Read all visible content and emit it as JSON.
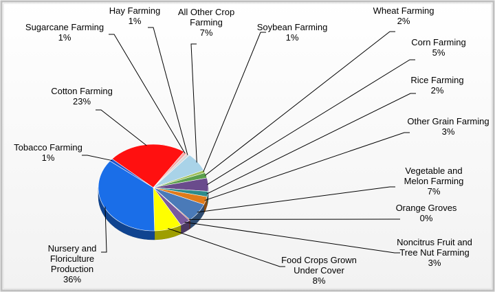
{
  "chart_data": {
    "type": "pie",
    "title": "",
    "slices": [
      {
        "label": "Wheat Farming",
        "value": 2,
        "display": "2%",
        "color": "#5a9e4b"
      },
      {
        "label": "Corn Farming",
        "value": 5,
        "display": "5%",
        "color": "#6a4b8c"
      },
      {
        "label": "Rice Farming",
        "value": 2,
        "display": "2%",
        "color": "#2e8b8b"
      },
      {
        "label": "Other Grain Farming",
        "value": 3,
        "display": "3%",
        "color": "#e07b1a"
      },
      {
        "label": "Vegetable and Melon Farming",
        "value": 7,
        "display": "7%",
        "color": "#4a7ab8"
      },
      {
        "label": "Orange Groves",
        "value": 0,
        "display": "0%",
        "color": "#b7411a"
      },
      {
        "label": "Noncitrus Fruit and Tree Nut Farming",
        "value": 3,
        "display": "3%",
        "color": "#7a5a9e"
      },
      {
        "label": "Food Crops Grown Under Cover",
        "value": 8,
        "display": "8%",
        "color": "#ffff00"
      },
      {
        "label": "Nursery and Floriculture Production",
        "value": 36,
        "display": "36%",
        "color": "#1a6ee8"
      },
      {
        "label": "Tobacco Farming",
        "value": 1,
        "display": "1%",
        "color": "#2255cc"
      },
      {
        "label": "Cotton Farming",
        "value": 23,
        "display": "23%",
        "color": "#ff1010"
      },
      {
        "label": "Sugarcane Farming",
        "value": 1,
        "display": "1%",
        "color": "#f4a8a8"
      },
      {
        "label": "Hay Farming",
        "value": 1,
        "display": "1%",
        "color": "#d9d9d9"
      },
      {
        "label": "All Other Crop Farming",
        "value": 7,
        "display": "7%",
        "color": "#a9d3e8"
      },
      {
        "label": "Soybean Farming",
        "value": 1,
        "display": "1%",
        "color": "#9fbf5a"
      }
    ],
    "callouts": [
      {
        "lines": [
          "Wheat Farming",
          "2%"
        ]
      },
      {
        "lines": [
          "Corn Farming",
          "5%"
        ]
      },
      {
        "lines": [
          "Rice Farming",
          "2%"
        ]
      },
      {
        "lines": [
          "Other Grain Farming",
          "3%"
        ]
      },
      {
        "lines": [
          "Vegetable and",
          "Melon Farming",
          "7%"
        ]
      },
      {
        "lines": [
          "Orange Groves",
          "0%"
        ]
      },
      {
        "lines": [
          "Noncitrus Fruit and",
          "Tree Nut Farming",
          "3%"
        ]
      },
      {
        "lines": [
          "Food Crops Grown",
          "Under Cover",
          "8%"
        ]
      },
      {
        "lines": [
          "Nursery and",
          "Floriculture",
          "Production",
          "36%"
        ]
      },
      {
        "lines": [
          "Tobacco Farming",
          "1%"
        ]
      },
      {
        "lines": [
          "Cotton Farming",
          "23%"
        ]
      },
      {
        "lines": [
          "Sugarcane Farming",
          "1%"
        ]
      },
      {
        "lines": [
          "Hay Farming",
          "1%"
        ]
      },
      {
        "lines": [
          "All Other Crop",
          "Farming",
          "7%"
        ]
      },
      {
        "lines": [
          "Soybean Farming",
          "1%"
        ]
      }
    ]
  }
}
